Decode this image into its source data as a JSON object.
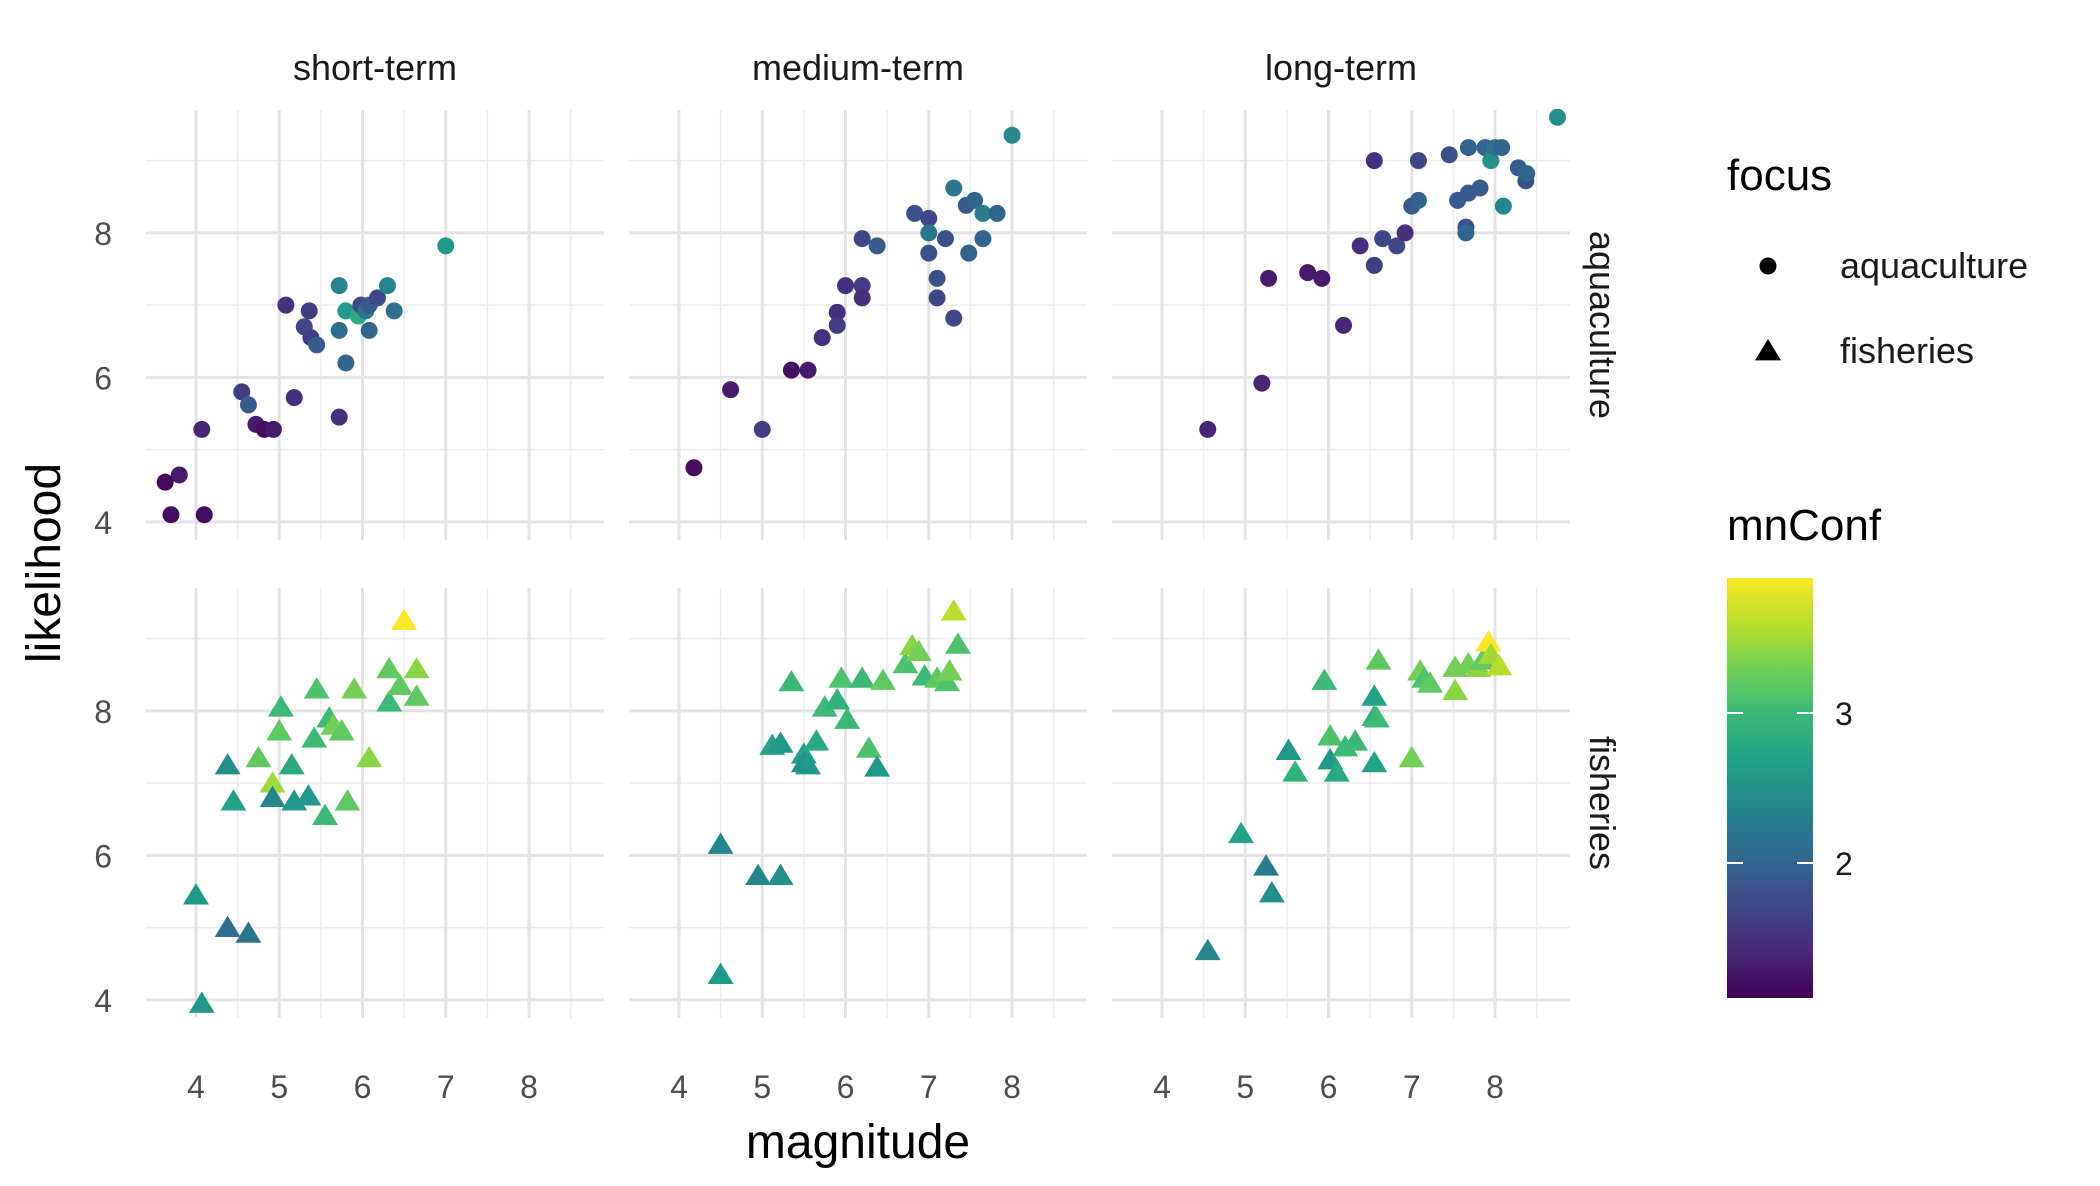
{
  "chart_data": {
    "type": "scatter",
    "title": "",
    "xlabel": "magnitude",
    "ylabel": "likelihood",
    "xlim": [
      3.4,
      8.9
    ],
    "ylim": [
      3.75,
      9.7
    ],
    "x_ticks": [
      "4",
      "5",
      "6",
      "7",
      "8"
    ],
    "y_ticks": [
      "4",
      "6",
      "8"
    ],
    "grid": true,
    "columns": [
      "short-term",
      "medium-term",
      "long-term"
    ],
    "rows": [
      "aquaculture",
      "fisheries"
    ],
    "shape_legend": {
      "title": "focus",
      "items": [
        {
          "label": "aquaculture",
          "shape": "circle"
        },
        {
          "label": "fisheries",
          "shape": "triangle"
        }
      ]
    },
    "color_legend": {
      "title": "mnConf",
      "ticks": [
        "2",
        "3"
      ],
      "range": [
        1.1,
        3.9
      ],
      "palette": [
        "#440154",
        "#482878",
        "#3e4989",
        "#31688e",
        "#26828e",
        "#1f9e89",
        "#35b779",
        "#6ece58",
        "#b5de2b",
        "#fde725"
      ]
    },
    "panels": [
      {
        "column": "short-term",
        "row": "aquaculture",
        "points": [
          {
            "x": 3.63,
            "y": 4.55,
            "c": 1.15
          },
          {
            "x": 3.7,
            "y": 4.1,
            "c": 1.2
          },
          {
            "x": 3.8,
            "y": 4.65,
            "c": 1.3
          },
          {
            "x": 4.1,
            "y": 4.1,
            "c": 1.2
          },
          {
            "x": 4.07,
            "y": 5.28,
            "c": 1.4
          },
          {
            "x": 4.55,
            "y": 5.8,
            "c": 1.6
          },
          {
            "x": 4.63,
            "y": 5.62,
            "c": 1.9
          },
          {
            "x": 4.72,
            "y": 5.35,
            "c": 1.3
          },
          {
            "x": 4.82,
            "y": 5.28,
            "c": 1.2
          },
          {
            "x": 4.93,
            "y": 5.28,
            "c": 1.3
          },
          {
            "x": 5.08,
            "y": 7.0,
            "c": 1.5
          },
          {
            "x": 5.18,
            "y": 5.72,
            "c": 1.5
          },
          {
            "x": 5.3,
            "y": 6.7,
            "c": 1.7
          },
          {
            "x": 5.38,
            "y": 6.55,
            "c": 1.6
          },
          {
            "x": 5.45,
            "y": 6.45,
            "c": 1.9
          },
          {
            "x": 5.36,
            "y": 6.92,
            "c": 1.6
          },
          {
            "x": 5.72,
            "y": 7.27,
            "c": 2.4
          },
          {
            "x": 5.72,
            "y": 6.65,
            "c": 2.1
          },
          {
            "x": 5.72,
            "y": 5.45,
            "c": 1.5
          },
          {
            "x": 5.8,
            "y": 6.92,
            "c": 2.6
          },
          {
            "x": 5.8,
            "y": 6.2,
            "c": 2.0
          },
          {
            "x": 5.95,
            "y": 6.85,
            "c": 2.8
          },
          {
            "x": 5.98,
            "y": 7.0,
            "c": 1.7
          },
          {
            "x": 6.04,
            "y": 6.92,
            "c": 2.2
          },
          {
            "x": 6.08,
            "y": 7.0,
            "c": 1.9
          },
          {
            "x": 6.08,
            "y": 6.65,
            "c": 2.0
          },
          {
            "x": 6.18,
            "y": 7.1,
            "c": 1.7
          },
          {
            "x": 6.3,
            "y": 7.27,
            "c": 2.4
          },
          {
            "x": 6.38,
            "y": 6.92,
            "c": 2.1
          },
          {
            "x": 7.0,
            "y": 7.82,
            "c": 2.6
          }
        ]
      },
      {
        "column": "medium-term",
        "row": "aquaculture",
        "points": [
          {
            "x": 4.18,
            "y": 4.75,
            "c": 1.2
          },
          {
            "x": 4.62,
            "y": 5.83,
            "c": 1.3
          },
          {
            "x": 5.0,
            "y": 5.28,
            "c": 1.6
          },
          {
            "x": 5.35,
            "y": 6.1,
            "c": 1.2
          },
          {
            "x": 5.55,
            "y": 6.1,
            "c": 1.3
          },
          {
            "x": 5.72,
            "y": 6.55,
            "c": 1.5
          },
          {
            "x": 5.9,
            "y": 6.9,
            "c": 1.5
          },
          {
            "x": 5.9,
            "y": 6.72,
            "c": 1.6
          },
          {
            "x": 6.0,
            "y": 7.27,
            "c": 1.5
          },
          {
            "x": 6.2,
            "y": 7.27,
            "c": 1.6
          },
          {
            "x": 6.2,
            "y": 7.1,
            "c": 1.5
          },
          {
            "x": 6.2,
            "y": 7.92,
            "c": 1.7
          },
          {
            "x": 6.38,
            "y": 7.82,
            "c": 1.9
          },
          {
            "x": 6.83,
            "y": 8.27,
            "c": 1.8
          },
          {
            "x": 7.0,
            "y": 8.2,
            "c": 1.7
          },
          {
            "x": 7.0,
            "y": 8.0,
            "c": 2.2
          },
          {
            "x": 7.0,
            "y": 7.72,
            "c": 1.8
          },
          {
            "x": 7.1,
            "y": 7.37,
            "c": 1.8
          },
          {
            "x": 7.1,
            "y": 7.1,
            "c": 1.7
          },
          {
            "x": 7.2,
            "y": 7.92,
            "c": 1.8
          },
          {
            "x": 7.3,
            "y": 8.62,
            "c": 2.2
          },
          {
            "x": 7.3,
            "y": 6.82,
            "c": 1.7
          },
          {
            "x": 7.45,
            "y": 8.38,
            "c": 1.9
          },
          {
            "x": 7.48,
            "y": 7.72,
            "c": 2.0
          },
          {
            "x": 7.55,
            "y": 8.45,
            "c": 2.0
          },
          {
            "x": 7.65,
            "y": 8.27,
            "c": 2.3
          },
          {
            "x": 7.65,
            "y": 7.92,
            "c": 2.0
          },
          {
            "x": 7.82,
            "y": 8.27,
            "c": 2.0
          },
          {
            "x": 8.0,
            "y": 9.35,
            "c": 2.4
          }
        ]
      },
      {
        "column": "long-term",
        "row": "aquaculture",
        "points": [
          {
            "x": 4.55,
            "y": 5.28,
            "c": 1.4
          },
          {
            "x": 5.2,
            "y": 5.92,
            "c": 1.4
          },
          {
            "x": 5.28,
            "y": 7.37,
            "c": 1.3
          },
          {
            "x": 5.75,
            "y": 7.45,
            "c": 1.3
          },
          {
            "x": 5.92,
            "y": 7.37,
            "c": 1.3
          },
          {
            "x": 6.18,
            "y": 6.72,
            "c": 1.4
          },
          {
            "x": 6.38,
            "y": 7.82,
            "c": 1.5
          },
          {
            "x": 6.55,
            "y": 7.55,
            "c": 1.6
          },
          {
            "x": 6.55,
            "y": 9.0,
            "c": 1.5
          },
          {
            "x": 6.65,
            "y": 7.92,
            "c": 1.7
          },
          {
            "x": 6.82,
            "y": 7.82,
            "c": 1.7
          },
          {
            "x": 6.92,
            "y": 8.0,
            "c": 1.5
          },
          {
            "x": 7.0,
            "y": 8.37,
            "c": 1.9
          },
          {
            "x": 7.08,
            "y": 8.45,
            "c": 2.0
          },
          {
            "x": 7.08,
            "y": 9.0,
            "c": 1.7
          },
          {
            "x": 7.45,
            "y": 9.08,
            "c": 1.8
          },
          {
            "x": 7.55,
            "y": 8.45,
            "c": 1.9
          },
          {
            "x": 7.68,
            "y": 9.18,
            "c": 2.0
          },
          {
            "x": 7.68,
            "y": 8.55,
            "c": 1.9
          },
          {
            "x": 7.65,
            "y": 8.08,
            "c": 1.8
          },
          {
            "x": 7.65,
            "y": 8.0,
            "c": 2.0
          },
          {
            "x": 7.82,
            "y": 8.62,
            "c": 1.9
          },
          {
            "x": 7.88,
            "y": 9.18,
            "c": 2.0
          },
          {
            "x": 7.95,
            "y": 9.0,
            "c": 2.5
          },
          {
            "x": 8.0,
            "y": 9.18,
            "c": 2.2
          },
          {
            "x": 8.08,
            "y": 9.18,
            "c": 2.0
          },
          {
            "x": 8.1,
            "y": 8.37,
            "c": 2.4
          },
          {
            "x": 8.28,
            "y": 8.9,
            "c": 1.9
          },
          {
            "x": 8.37,
            "y": 8.72,
            "c": 1.8
          },
          {
            "x": 8.38,
            "y": 8.82,
            "c": 2.0
          },
          {
            "x": 8.75,
            "y": 9.6,
            "c": 2.5
          }
        ]
      },
      {
        "column": "short-term",
        "row": "fisheries",
        "points": [
          {
            "x": 4.0,
            "y": 5.45,
            "c": 2.6
          },
          {
            "x": 4.07,
            "y": 3.95,
            "c": 2.6
          },
          {
            "x": 4.38,
            "y": 5.0,
            "c": 2.1
          },
          {
            "x": 4.38,
            "y": 7.25,
            "c": 2.5
          },
          {
            "x": 4.45,
            "y": 6.75,
            "c": 2.7
          },
          {
            "x": 4.63,
            "y": 4.92,
            "c": 2.2
          },
          {
            "x": 4.75,
            "y": 7.35,
            "c": 3.2
          },
          {
            "x": 4.92,
            "y": 7.0,
            "c": 3.5
          },
          {
            "x": 4.92,
            "y": 6.8,
            "c": 2.4
          },
          {
            "x": 5.0,
            "y": 7.72,
            "c": 3.2
          },
          {
            "x": 5.02,
            "y": 8.05,
            "c": 3.0
          },
          {
            "x": 5.15,
            "y": 7.25,
            "c": 2.8
          },
          {
            "x": 5.18,
            "y": 6.75,
            "c": 2.6
          },
          {
            "x": 5.35,
            "y": 6.82,
            "c": 2.6
          },
          {
            "x": 5.45,
            "y": 8.3,
            "c": 3.1
          },
          {
            "x": 5.42,
            "y": 7.62,
            "c": 3.0
          },
          {
            "x": 5.55,
            "y": 6.55,
            "c": 3.0
          },
          {
            "x": 5.6,
            "y": 7.9,
            "c": 3.0
          },
          {
            "x": 5.65,
            "y": 7.8,
            "c": 3.3
          },
          {
            "x": 5.75,
            "y": 7.72,
            "c": 3.2
          },
          {
            "x": 5.82,
            "y": 6.75,
            "c": 3.2
          },
          {
            "x": 5.9,
            "y": 8.3,
            "c": 3.3
          },
          {
            "x": 6.08,
            "y": 7.35,
            "c": 3.4
          },
          {
            "x": 6.32,
            "y": 8.58,
            "c": 3.2
          },
          {
            "x": 6.32,
            "y": 8.12,
            "c": 3.0
          },
          {
            "x": 6.45,
            "y": 8.35,
            "c": 3.2
          },
          {
            "x": 6.5,
            "y": 9.25,
            "c": 3.9
          },
          {
            "x": 6.65,
            "y": 8.58,
            "c": 3.4
          },
          {
            "x": 6.65,
            "y": 8.2,
            "c": 3.2
          }
        ]
      },
      {
        "column": "medium-term",
        "row": "fisheries",
        "points": [
          {
            "x": 4.5,
            "y": 4.35,
            "c": 2.6
          },
          {
            "x": 4.5,
            "y": 6.15,
            "c": 2.4
          },
          {
            "x": 4.95,
            "y": 5.72,
            "c": 2.4
          },
          {
            "x": 5.12,
            "y": 7.52,
            "c": 2.7
          },
          {
            "x": 5.22,
            "y": 7.55,
            "c": 2.6
          },
          {
            "x": 5.22,
            "y": 5.72,
            "c": 2.5
          },
          {
            "x": 5.35,
            "y": 8.4,
            "c": 3.0
          },
          {
            "x": 5.5,
            "y": 7.4,
            "c": 2.7
          },
          {
            "x": 5.5,
            "y": 7.28,
            "c": 2.5
          },
          {
            "x": 5.55,
            "y": 7.25,
            "c": 2.6
          },
          {
            "x": 5.65,
            "y": 7.58,
            "c": 2.8
          },
          {
            "x": 5.75,
            "y": 8.05,
            "c": 3.0
          },
          {
            "x": 5.9,
            "y": 8.15,
            "c": 2.9
          },
          {
            "x": 5.95,
            "y": 8.45,
            "c": 3.1
          },
          {
            "x": 6.02,
            "y": 7.88,
            "c": 3.0
          },
          {
            "x": 6.2,
            "y": 8.45,
            "c": 3.0
          },
          {
            "x": 6.28,
            "y": 7.48,
            "c": 3.1
          },
          {
            "x": 6.38,
            "y": 7.22,
            "c": 2.6
          },
          {
            "x": 6.45,
            "y": 8.42,
            "c": 3.2
          },
          {
            "x": 6.72,
            "y": 8.65,
            "c": 3.1
          },
          {
            "x": 6.8,
            "y": 8.9,
            "c": 3.4
          },
          {
            "x": 6.88,
            "y": 8.82,
            "c": 3.3
          },
          {
            "x": 6.95,
            "y": 8.48,
            "c": 3.0
          },
          {
            "x": 7.1,
            "y": 8.45,
            "c": 3.2
          },
          {
            "x": 7.22,
            "y": 8.4,
            "c": 3.1
          },
          {
            "x": 7.25,
            "y": 8.55,
            "c": 3.3
          },
          {
            "x": 7.3,
            "y": 9.38,
            "c": 3.6
          },
          {
            "x": 7.35,
            "y": 8.92,
            "c": 3.1
          }
        ]
      },
      {
        "column": "long-term",
        "row": "fisheries",
        "points": [
          {
            "x": 4.55,
            "y": 4.68,
            "c": 2.4
          },
          {
            "x": 4.95,
            "y": 6.3,
            "c": 2.7
          },
          {
            "x": 5.25,
            "y": 5.85,
            "c": 2.3
          },
          {
            "x": 5.32,
            "y": 5.48,
            "c": 2.5
          },
          {
            "x": 5.52,
            "y": 7.45,
            "c": 2.6
          },
          {
            "x": 5.6,
            "y": 7.15,
            "c": 2.9
          },
          {
            "x": 5.95,
            "y": 8.42,
            "c": 3.0
          },
          {
            "x": 6.02,
            "y": 7.65,
            "c": 3.1
          },
          {
            "x": 6.02,
            "y": 7.32,
            "c": 2.6
          },
          {
            "x": 6.1,
            "y": 7.15,
            "c": 2.8
          },
          {
            "x": 6.2,
            "y": 7.5,
            "c": 3.0
          },
          {
            "x": 6.32,
            "y": 7.58,
            "c": 3.0
          },
          {
            "x": 6.55,
            "y": 8.2,
            "c": 2.7
          },
          {
            "x": 6.55,
            "y": 7.92,
            "c": 2.9
          },
          {
            "x": 6.55,
            "y": 7.28,
            "c": 2.7
          },
          {
            "x": 6.6,
            "y": 8.7,
            "c": 3.2
          },
          {
            "x": 6.58,
            "y": 7.9,
            "c": 3.0
          },
          {
            "x": 7.0,
            "y": 7.35,
            "c": 3.3
          },
          {
            "x": 7.1,
            "y": 8.55,
            "c": 3.3
          },
          {
            "x": 7.15,
            "y": 8.45,
            "c": 3.1
          },
          {
            "x": 7.22,
            "y": 8.38,
            "c": 3.2
          },
          {
            "x": 7.52,
            "y": 8.6,
            "c": 3.3
          },
          {
            "x": 7.52,
            "y": 8.28,
            "c": 3.4
          },
          {
            "x": 7.68,
            "y": 8.65,
            "c": 3.3
          },
          {
            "x": 7.8,
            "y": 8.6,
            "c": 3.4
          },
          {
            "x": 7.85,
            "y": 8.7,
            "c": 3.2
          },
          {
            "x": 7.92,
            "y": 8.95,
            "c": 3.9
          },
          {
            "x": 7.95,
            "y": 8.78,
            "c": 3.5
          },
          {
            "x": 8.05,
            "y": 8.62,
            "c": 3.6
          }
        ]
      }
    ]
  }
}
